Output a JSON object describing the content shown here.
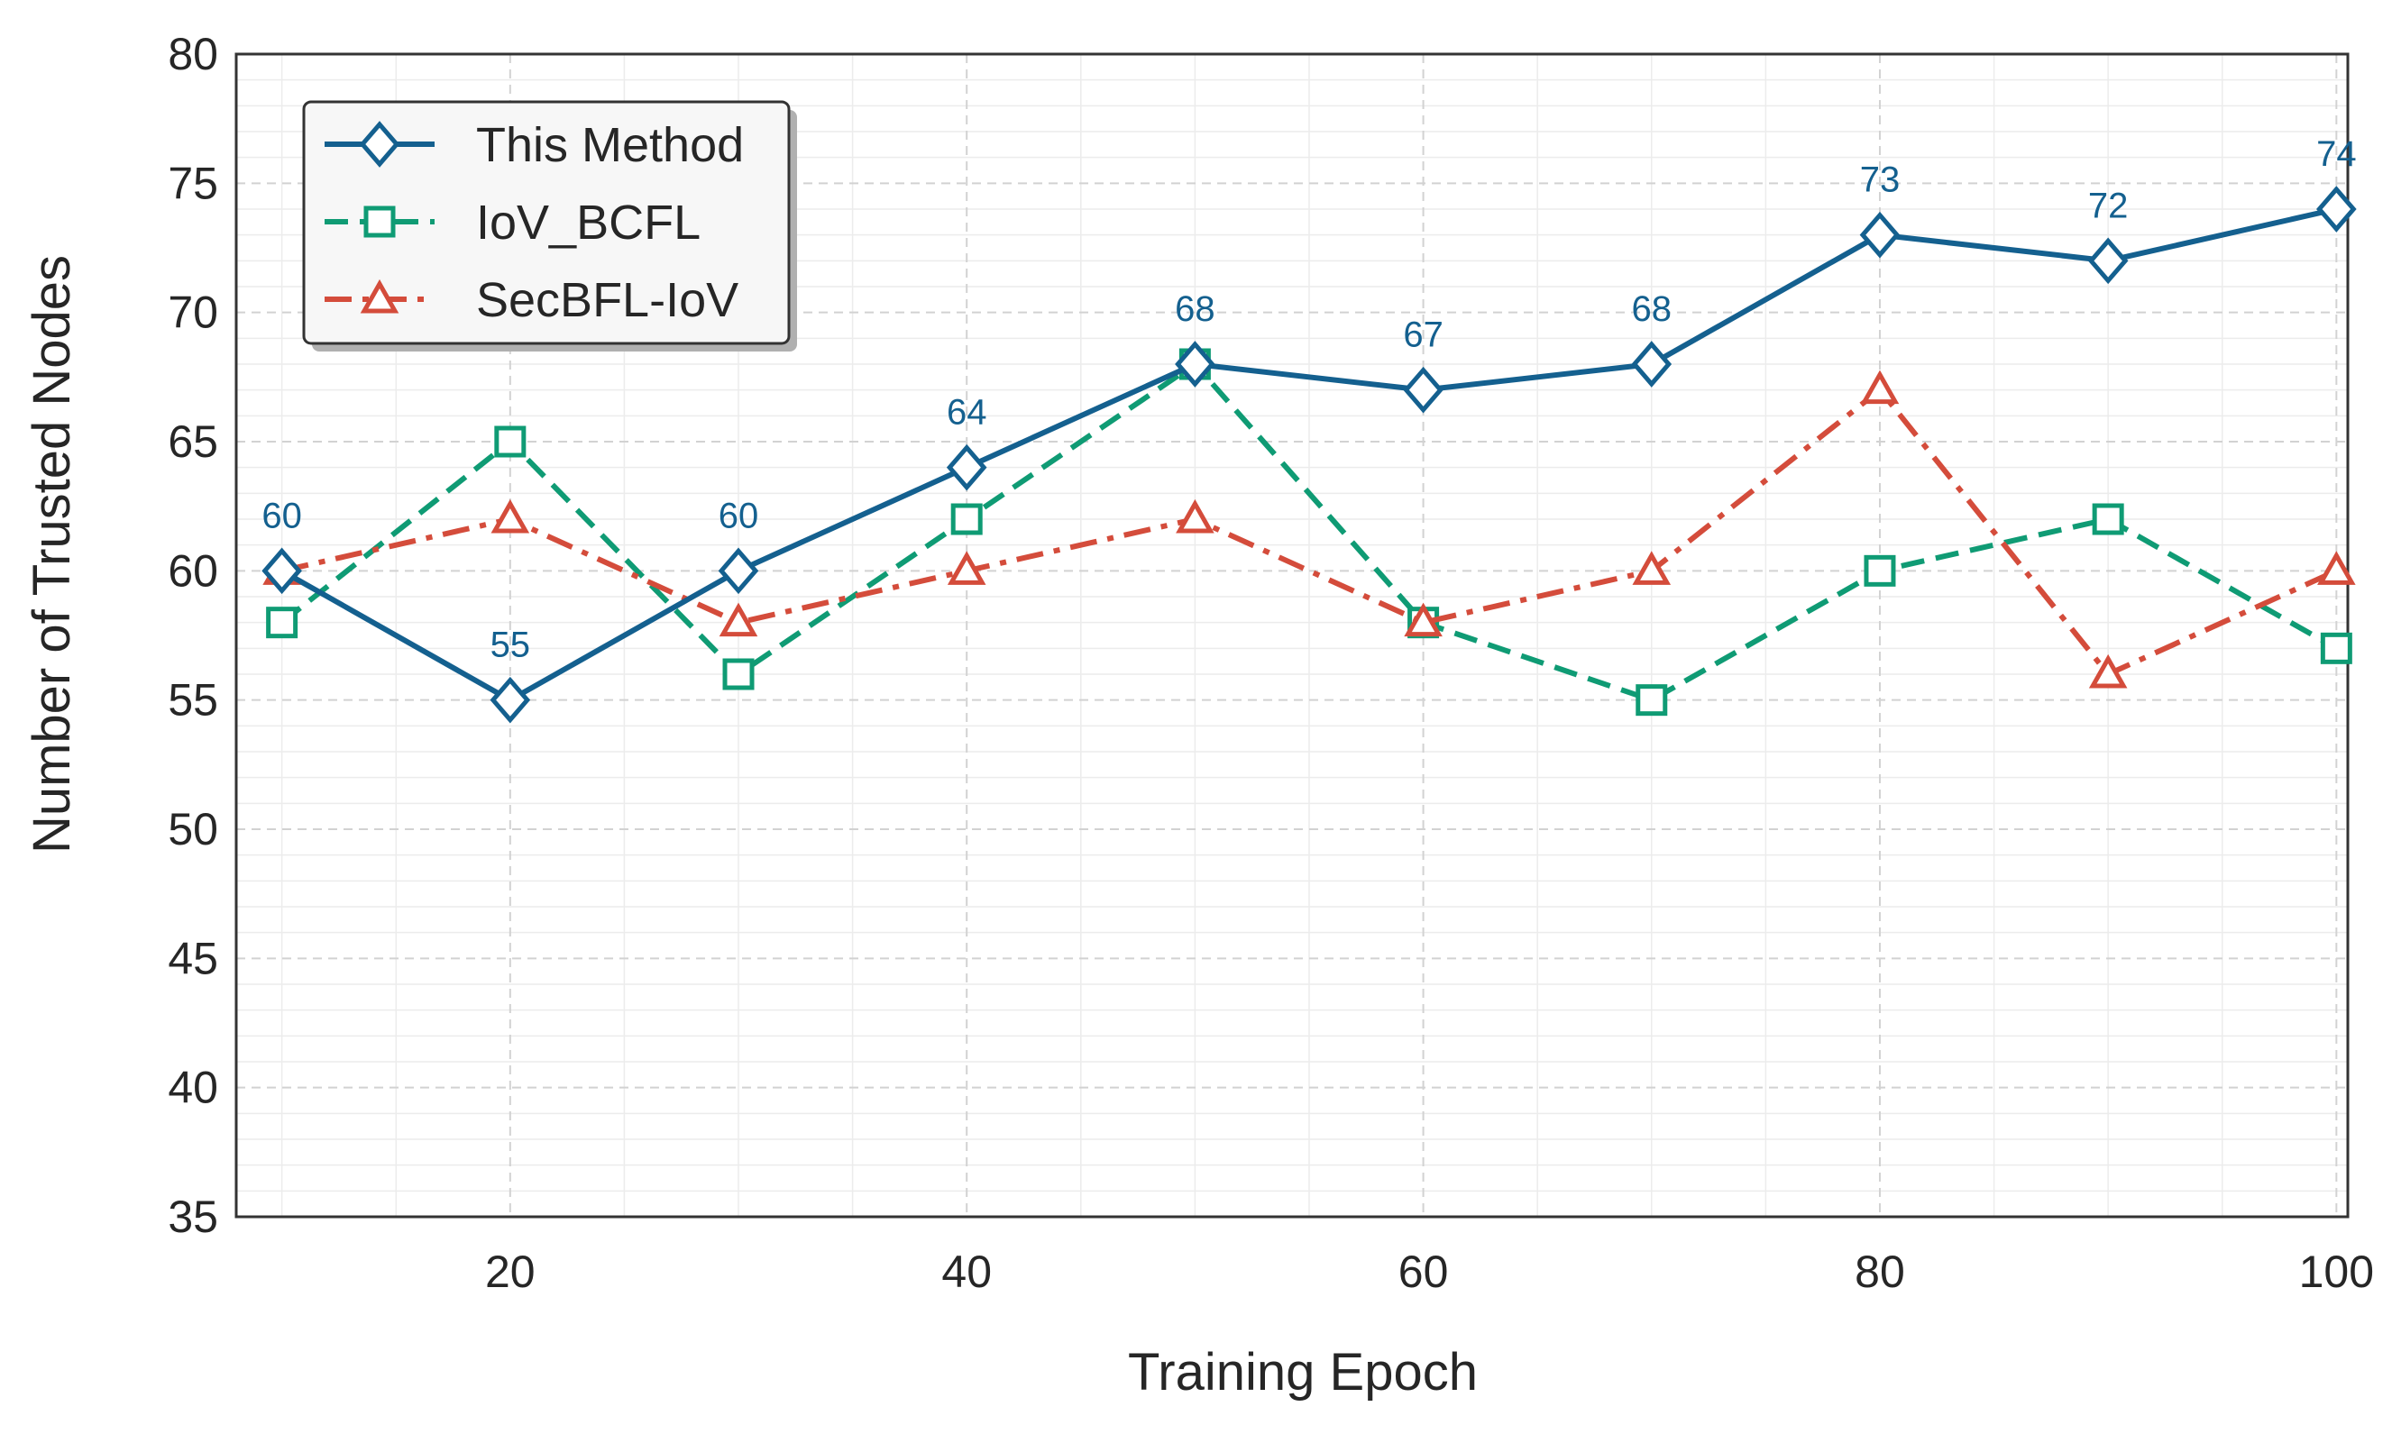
{
  "colors": {
    "this_method": "#14608f",
    "iov_bcfl": "#0f9b74",
    "secbfl_iov": "#d44c3b",
    "label": "#14608f"
  },
  "chart_data": {
    "type": "line",
    "title": "",
    "xlabel": "Training Epoch",
    "ylabel": "Number of Trusted Nodes",
    "x": [
      10,
      20,
      30,
      40,
      50,
      60,
      70,
      80,
      90,
      100
    ],
    "xlim": [
      8,
      100.5
    ],
    "ylim": [
      35,
      80
    ],
    "xticks": [
      20,
      40,
      60,
      80,
      100
    ],
    "yticks": [
      35,
      40,
      45,
      50,
      55,
      60,
      65,
      70,
      75,
      80
    ],
    "grid": true,
    "legend_position": "top-left",
    "series": [
      {
        "name": "This Method",
        "marker": "diamond",
        "line_style": "solid",
        "color_key": "this_method",
        "values": [
          60,
          55,
          60,
          64,
          68,
          67,
          68,
          73,
          72,
          74
        ],
        "data_labels": true
      },
      {
        "name": "IoV_BCFL",
        "marker": "square",
        "line_style": "dashed",
        "color_key": "iov_bcfl",
        "values": [
          58,
          65,
          56,
          62,
          68,
          58,
          55,
          60,
          62,
          57
        ]
      },
      {
        "name": "SecBFL-IoV",
        "marker": "triangle",
        "line_style": "dashdot",
        "color_key": "secbfl_iov",
        "values": [
          60,
          62,
          58,
          60,
          62,
          58,
          60,
          67,
          56,
          60
        ]
      }
    ]
  }
}
